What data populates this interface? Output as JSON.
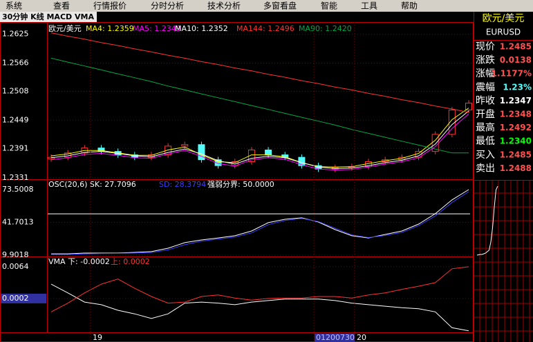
{
  "menu": [
    "系统",
    "查看",
    "行情报价",
    "分时分析",
    "技术分析",
    "多窗看盘",
    "智能",
    "工具",
    "帮助"
  ],
  "header": {
    "title": "30分钟 K线 MACD VMA"
  },
  "price_panel": {
    "symbol": "欧元/美元",
    "ylim": [
      1.2328,
      1.265
    ],
    "yticks": [
      1.2625,
      1.2566,
      1.2508,
      1.2449,
      1.2391,
      1.2331
    ],
    "candles": {
      "open": [
        1.237,
        1.2373,
        1.2382,
        1.2392,
        1.2385,
        1.2378,
        1.2373,
        1.2378,
        1.2396,
        1.2399,
        1.2368,
        1.2356,
        1.2364,
        1.2388,
        1.2378,
        1.2373,
        1.2356,
        1.2349,
        1.2352,
        1.2354,
        1.2364,
        1.2368,
        1.2373,
        1.2385,
        1.242,
        1.247
      ],
      "close": [
        1.2373,
        1.2382,
        1.2392,
        1.2385,
        1.2378,
        1.2373,
        1.2378,
        1.2396,
        1.2399,
        1.2368,
        1.2356,
        1.2364,
        1.2388,
        1.2378,
        1.2373,
        1.2356,
        1.2349,
        1.2352,
        1.2354,
        1.2364,
        1.2368,
        1.2373,
        1.2385,
        1.242,
        1.247,
        1.2484
      ],
      "high": [
        1.2379,
        1.2388,
        1.2398,
        1.2398,
        1.2391,
        1.2384,
        1.2384,
        1.2402,
        1.2405,
        1.2405,
        1.2374,
        1.237,
        1.2394,
        1.2394,
        1.2384,
        1.2379,
        1.2362,
        1.2358,
        1.236,
        1.237,
        1.2374,
        1.2379,
        1.2391,
        1.2426,
        1.2476,
        1.249
      ],
      "low": [
        1.2364,
        1.2367,
        1.2376,
        1.2379,
        1.2372,
        1.2367,
        1.2367,
        1.2372,
        1.239,
        1.2362,
        1.235,
        1.235,
        1.2358,
        1.2372,
        1.2367,
        1.235,
        1.2343,
        1.2343,
        1.2346,
        1.2348,
        1.2358,
        1.2362,
        1.2367,
        1.2379,
        1.2414,
        1.2464
      ],
      "up_color": "#ff3232",
      "down_color": "#54fcfc"
    },
    "series": [
      {
        "name": "MA4: 1.2359",
        "color": "#ffff00",
        "values": [
          1.2376,
          1.238,
          1.2387,
          1.2387,
          1.2382,
          1.2377,
          1.2377,
          1.2388,
          1.2394,
          1.2378,
          1.2364,
          1.2362,
          1.2378,
          1.2378,
          1.2374,
          1.2362,
          1.2354,
          1.2353,
          1.2354,
          1.236,
          1.2366,
          1.2371,
          1.2381,
          1.2408,
          1.245,
          1.2474
        ]
      },
      {
        "name": "MA5: 1.2349",
        "color": "#ff00ff",
        "values": [
          1.2368,
          1.2372,
          1.2379,
          1.2381,
          1.2377,
          1.2372,
          1.2371,
          1.238,
          1.2387,
          1.2375,
          1.236,
          1.2355,
          1.2368,
          1.2372,
          1.2369,
          1.2358,
          1.2349,
          1.2347,
          1.2348,
          1.2353,
          1.2359,
          1.2364,
          1.2372,
          1.2395,
          1.2432,
          1.2462
        ]
      },
      {
        "name": "MA10: 1.2352",
        "color": "#ffffff",
        "values": [
          1.2372,
          1.2376,
          1.2383,
          1.2385,
          1.2381,
          1.2376,
          1.2374,
          1.2383,
          1.239,
          1.238,
          1.2366,
          1.2359,
          1.2371,
          1.2375,
          1.2372,
          1.2362,
          1.2353,
          1.235,
          1.2351,
          1.2356,
          1.2362,
          1.2367,
          1.2376,
          1.24,
          1.244,
          1.2468
        ]
      },
      {
        "name": "MA144: 1.2496",
        "color": "#ff3232",
        "values": [
          1.2628,
          1.2621,
          1.2615,
          1.2608,
          1.2602,
          1.2595,
          1.2589,
          1.2582,
          1.2576,
          1.2569,
          1.2563,
          1.2556,
          1.255,
          1.2543,
          1.2537,
          1.253,
          1.2524,
          1.2517,
          1.2511,
          1.2504,
          1.2498,
          1.2491,
          1.2485,
          1.2478,
          1.2472,
          1.2465
        ]
      },
      {
        "name": "MA90: 1.2420",
        "color": "#00a848",
        "values": [
          1.2576,
          1.2568,
          1.256,
          1.2552,
          1.2544,
          1.2536,
          1.2528,
          1.2519,
          1.2511,
          1.2503,
          1.2495,
          1.2487,
          1.2479,
          1.2471,
          1.2463,
          1.2455,
          1.2447,
          1.2439,
          1.243,
          1.2422,
          1.2414,
          1.2406,
          1.2398,
          1.239,
          1.2382,
          1.2382
        ]
      }
    ]
  },
  "osc_panel": {
    "legend": [
      "OSC(20,6) SK: 27.7096",
      "SD: 28.3794",
      "强弱分界: 50.0000"
    ],
    "boundary": 50,
    "ylim": [
      8.56,
      82.2
    ],
    "yticks": [
      73.5008,
      41.7013,
      9.9018
    ],
    "series": [
      {
        "color": "#ffffff",
        "values": [
          11.2,
          11.2,
          11.9,
          11.9,
          11.9,
          12.6,
          13.3,
          16.6,
          22.0,
          24.6,
          26.6,
          28.7,
          33.3,
          41.4,
          44.7,
          46.1,
          42.0,
          34.7,
          28.7,
          26.6,
          30.0,
          33.3,
          40.0,
          50.1,
          63.5,
          73.5
        ]
      },
      {
        "color": "#3c3cff",
        "values": [
          10.5,
          10.6,
          11.2,
          11.5,
          11.6,
          12.0,
          12.5,
          15.0,
          20.0,
          23.5,
          25.5,
          27.5,
          31.5,
          39.5,
          43.5,
          45.5,
          42.5,
          36.0,
          29.5,
          27.0,
          29.0,
          32.0,
          38.5,
          48.0,
          61.0,
          71.5
        ]
      }
    ]
  },
  "vma_panel": {
    "legend": [
      "VMA 下: -0.0002",
      "上: 0.0002"
    ],
    "ylim": [
      -0.0064,
      0.0084
    ],
    "yticks": [
      0.0064,
      0.0002
    ],
    "series": [
      {
        "color": "#ffffff",
        "values": [
          0.003,
          0.0013,
          -0.0005,
          -0.001,
          -0.0021,
          -0.0028,
          -0.0037,
          -0.0028,
          -0.0007,
          -0.0005,
          -0.0007,
          -0.001,
          -0.0005,
          -0.0002,
          0.0001,
          0.0001,
          0.0001,
          -0.0002,
          -0.0007,
          -0.001,
          -0.0013,
          -0.0016,
          -0.0018,
          -0.0024,
          -0.0055,
          -0.0061
        ]
      },
      {
        "color": "#ff3232",
        "values": [
          -0.0024,
          -0.0007,
          0.0013,
          0.003,
          0.004,
          0.0022,
          0.0006,
          -0.0007,
          -0.0005,
          0.0006,
          0.0009,
          0.0003,
          -0.0001,
          0.0002,
          0.0003,
          0.0003,
          0.0006,
          0.0006,
          0.0003,
          0.0009,
          0.0013,
          0.002,
          0.0026,
          0.0033,
          0.006,
          0.0064
        ]
      }
    ]
  },
  "x_axis": {
    "labels": [
      "19",
      "01200730",
      "20"
    ]
  },
  "quote": {
    "name": "欧元/美元",
    "code": "EURUSD",
    "rows": [
      {
        "label": "现价",
        "value": "1.2485",
        "color": "#ff5050"
      },
      {
        "label": "涨跌",
        "value": "0.0138",
        "color": "#ff5050"
      },
      {
        "label": "涨幅",
        "value": "1.1177%",
        "color": "#ff5050"
      },
      {
        "label": "震幅",
        "value": "1.23%",
        "color": "#54fcfc"
      },
      {
        "label": "昨收",
        "value": "1.2347",
        "color": "#ffffff"
      },
      {
        "label": "开盘",
        "value": "1.2348",
        "color": "#ff5050"
      },
      {
        "label": "最高",
        "value": "1.2492",
        "color": "#ff5050"
      },
      {
        "label": "最低",
        "value": "1.2340",
        "color": "#00ff00"
      },
      {
        "label": "买入",
        "value": "1.2485",
        "color": "#ff5050"
      },
      {
        "label": "卖出",
        "value": "1.2488",
        "color": "#ff5050"
      }
    ],
    "mini_chart": [
      1,
      1.5,
      2,
      2,
      3,
      4,
      6,
      8,
      20,
      40,
      70,
      95,
      100
    ]
  }
}
